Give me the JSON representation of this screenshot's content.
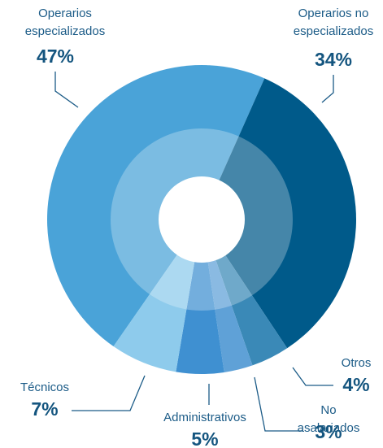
{
  "chart_data": {
    "type": "donut",
    "categories": [
      "Operarios especializados",
      "Operarios no especializados",
      "Otros",
      "No asalariados",
      "Administrativos",
      "Técnicos"
    ],
    "values": [
      47,
      34,
      4,
      3,
      5,
      7
    ],
    "value_labels": [
      "47%",
      "34%",
      "4%",
      "3%",
      "5%",
      "7%"
    ],
    "colors": [
      "#4aa3d8",
      "#005a8a",
      "#3a89b7",
      "#5fa1d7",
      "#3f90d1",
      "#8ecbec"
    ]
  }
}
